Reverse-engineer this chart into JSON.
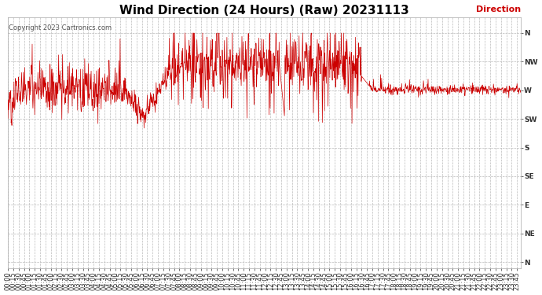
{
  "title": "Wind Direction (24 Hours) (Raw) 20231113",
  "copyright_text": "Copyright 2023 Cartronics.com",
  "legend_label": "Direction",
  "legend_color": "#cc0000",
  "line_color": "#cc0000",
  "background_color": "#ffffff",
  "grid_color": "#bbbbbb",
  "ytick_labels": [
    "N",
    "NW",
    "W",
    "SW",
    "S",
    "SE",
    "E",
    "NE",
    "N"
  ],
  "ytick_values": [
    360,
    315,
    270,
    225,
    180,
    135,
    90,
    45,
    0
  ],
  "ylim": [
    -10,
    385
  ],
  "title_fontsize": 11,
  "tick_fontsize": 6.5,
  "copyright_fontsize": 6,
  "legend_fontsize": 8,
  "line_width": 0.5
}
